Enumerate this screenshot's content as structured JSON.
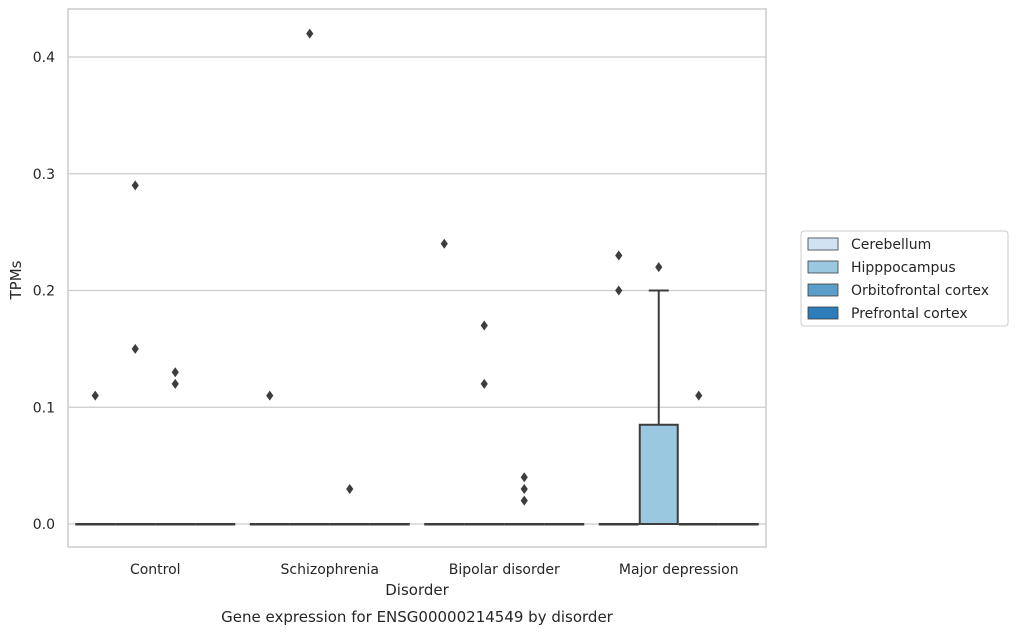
{
  "chart_data": {
    "type": "box",
    "xlabel": "Disorder",
    "ylabel": "TPMs",
    "caption": "Gene expression for ENSG00000214549 by disorder",
    "categories": [
      "Control",
      "Schizophrenia",
      "Bipolar disorder",
      "Major depression"
    ],
    "ylim": [
      -0.02,
      0.44
    ],
    "yticks": [
      0.0,
      0.1,
      0.2,
      0.3,
      0.4
    ],
    "ytick_labels": [
      "0.0",
      "0.1",
      "0.2",
      "0.3",
      "0.4"
    ],
    "grid": "horizontal",
    "legend_position": "right",
    "series": [
      {
        "name": "Cerebellum",
        "color": "#d1e2f2",
        "boxes": [
          {
            "category": "Control",
            "q1": 0,
            "median": 0,
            "q3": 0,
            "whisker_low": 0,
            "whisker_high": 0,
            "outliers": [
              0.11
            ]
          },
          {
            "category": "Schizophrenia",
            "q1": 0,
            "median": 0,
            "q3": 0,
            "whisker_low": 0,
            "whisker_high": 0,
            "outliers": [
              0.11
            ]
          },
          {
            "category": "Bipolar disorder",
            "q1": 0,
            "median": 0,
            "q3": 0,
            "whisker_low": 0,
            "whisker_high": 0,
            "outliers": [
              0.24
            ]
          },
          {
            "category": "Major depression",
            "q1": 0,
            "median": 0,
            "q3": 0,
            "whisker_low": 0,
            "whisker_high": 0,
            "outliers": [
              0.2,
              0.23
            ]
          }
        ]
      },
      {
        "name": "Hipppocampus",
        "color": "#9ac8e0",
        "boxes": [
          {
            "category": "Control",
            "q1": 0,
            "median": 0,
            "q3": 0,
            "whisker_low": 0,
            "whisker_high": 0,
            "outliers": [
              0.29,
              0.15
            ]
          },
          {
            "category": "Schizophrenia",
            "q1": 0,
            "median": 0,
            "q3": 0,
            "whisker_low": 0,
            "whisker_high": 0,
            "outliers": [
              0.42
            ]
          },
          {
            "category": "Bipolar disorder",
            "q1": 0,
            "median": 0,
            "q3": 0,
            "whisker_low": 0,
            "whisker_high": 0,
            "outliers": [
              0.17,
              0.12
            ]
          },
          {
            "category": "Major depression",
            "q1": 0,
            "median": 0,
            "q3": 0.085,
            "whisker_low": 0,
            "whisker_high": 0.2,
            "outliers": [
              0.22
            ]
          }
        ]
      },
      {
        "name": "Orbitofrontal cortex",
        "color": "#5a9ec9",
        "boxes": [
          {
            "category": "Control",
            "q1": 0,
            "median": 0,
            "q3": 0,
            "whisker_low": 0,
            "whisker_high": 0,
            "outliers": [
              0.13,
              0.12
            ]
          },
          {
            "category": "Schizophrenia",
            "q1": 0,
            "median": 0,
            "q3": 0,
            "whisker_low": 0,
            "whisker_high": 0,
            "outliers": [
              0.03
            ]
          },
          {
            "category": "Bipolar disorder",
            "q1": 0,
            "median": 0,
            "q3": 0,
            "whisker_low": 0,
            "whisker_high": 0,
            "outliers": [
              0.04,
              0.03,
              0.02
            ]
          },
          {
            "category": "Major depression",
            "q1": 0,
            "median": 0,
            "q3": 0,
            "whisker_low": 0,
            "whisker_high": 0,
            "outliers": [
              0.11
            ]
          }
        ]
      },
      {
        "name": "Prefrontal cortex",
        "color": "#2d7dbb",
        "boxes": [
          {
            "category": "Control",
            "q1": 0,
            "median": 0,
            "q3": 0,
            "whisker_low": 0,
            "whisker_high": 0,
            "outliers": []
          },
          {
            "category": "Schizophrenia",
            "q1": 0,
            "median": 0,
            "q3": 0,
            "whisker_low": 0,
            "whisker_high": 0,
            "outliers": []
          },
          {
            "category": "Bipolar disorder",
            "q1": 0,
            "median": 0,
            "q3": 0,
            "whisker_low": 0,
            "whisker_high": 0,
            "outliers": []
          },
          {
            "category": "Major depression",
            "q1": 0,
            "median": 0,
            "q3": 0,
            "whisker_low": 0,
            "whisker_high": 0,
            "outliers": []
          }
        ]
      }
    ]
  }
}
